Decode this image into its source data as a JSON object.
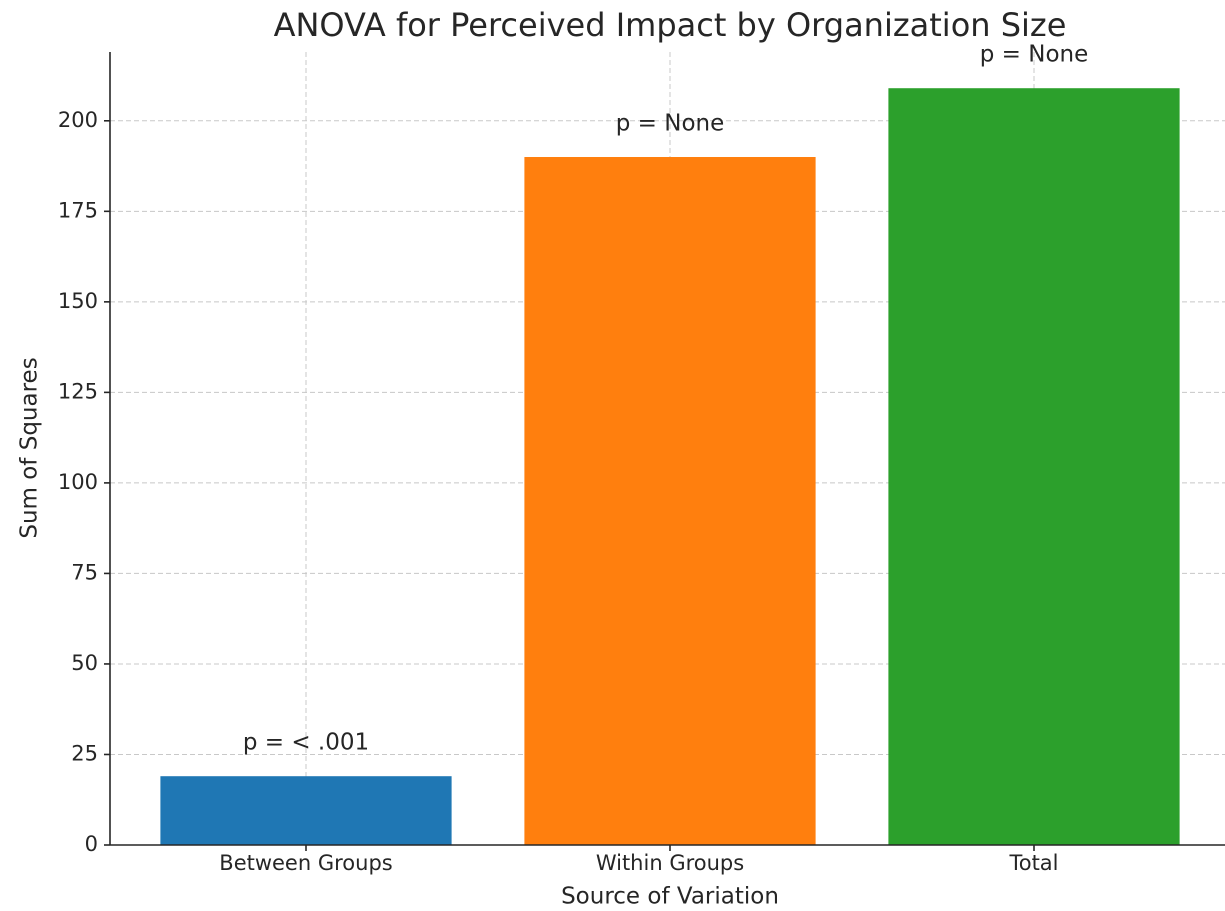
{
  "chart_data": {
    "type": "bar",
    "title": "ANOVA for Perceived Impact by Organization Size",
    "x_label": "Source of Variation",
    "y_label": "Sum of Squares",
    "categories": [
      "Between Groups",
      "Within Groups",
      "Total"
    ],
    "values": [
      19,
      190,
      209
    ],
    "colors": [
      "#1f77b4",
      "#ff7f0e",
      "#2ca02c"
    ],
    "annotations": [
      "p = < .001",
      "p = None",
      "p = None"
    ],
    "ylim": [
      0,
      219
    ],
    "yticks": [
      0,
      25,
      50,
      75,
      100,
      125,
      150,
      175,
      200
    ],
    "grid": true
  }
}
